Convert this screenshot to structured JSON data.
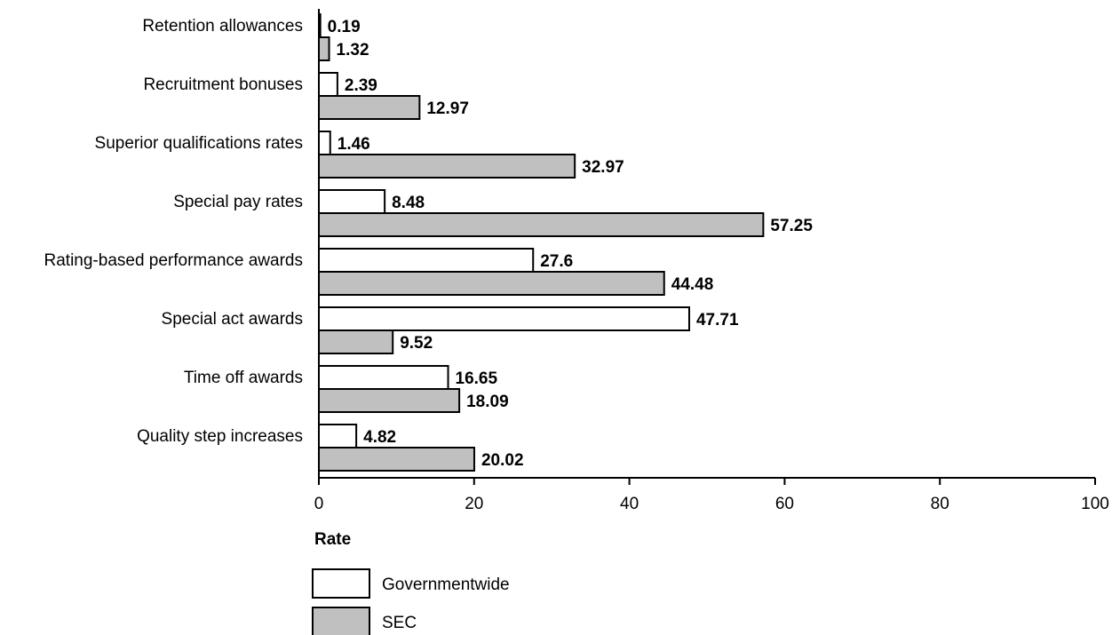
{
  "chart_data": {
    "type": "bar",
    "orientation": "horizontal",
    "categories": [
      "Retention allowances",
      "Recruitment bonuses",
      "Superior qualifications rates",
      "Special pay rates",
      "Rating-based performance awards",
      "Special act awards",
      "Time off awards",
      "Quality step increases"
    ],
    "series": [
      {
        "name": "Governmentwide",
        "color": "#ffffff",
        "values": [
          0.19,
          2.39,
          1.46,
          8.48,
          27.6,
          47.71,
          16.65,
          4.82
        ],
        "labels": [
          "0.19",
          "2.39",
          "1.46",
          "8.48",
          "27.6",
          "47.71",
          "16.65",
          "4.82"
        ]
      },
      {
        "name": "SEC",
        "color": "#c0c0c0",
        "values": [
          1.32,
          12.97,
          32.97,
          57.25,
          44.48,
          9.52,
          18.09,
          20.02
        ],
        "labels": [
          "1.32",
          "12.97",
          "32.97",
          "57.25",
          "44.48",
          "9.52",
          "18.09",
          "20.02"
        ]
      }
    ],
    "xlabel": "Rate",
    "xlim": [
      0,
      100
    ],
    "xticks": [
      "0",
      "20",
      "40",
      "60",
      "80",
      "100"
    ],
    "grid": false,
    "legend_position": "bottom-left"
  }
}
